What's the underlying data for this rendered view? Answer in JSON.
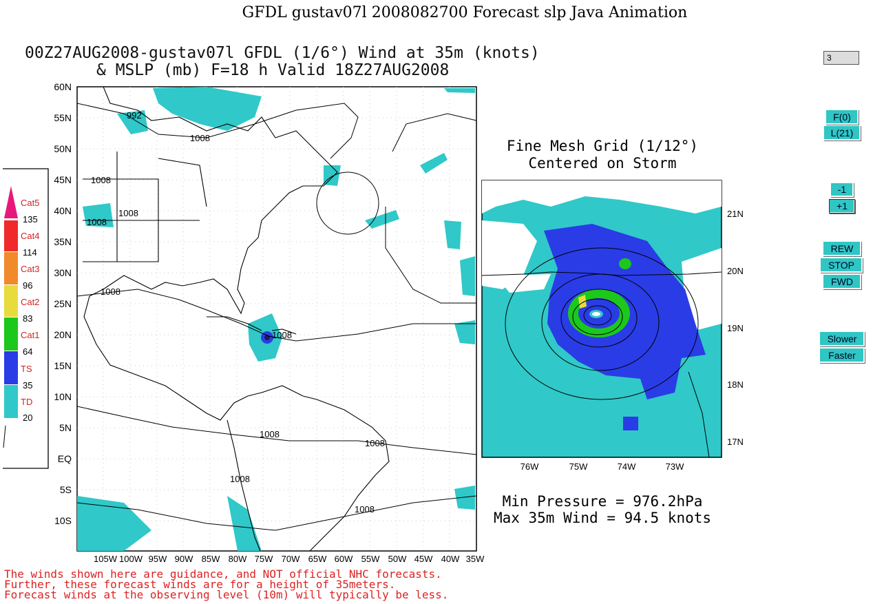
{
  "page": {
    "title": "GFDL gustav07l 2008082700 Forecast slp Java Animation"
  },
  "main_map": {
    "title_line1": "00Z27AUG2008-gustav07l GFDL (1/6°) Wind at 35m (knots)",
    "title_line2": "& MSLP (mb) F=18 h Valid 18Z27AUG2008",
    "lat_labels": [
      "60N",
      "55N",
      "50N",
      "45N",
      "40N",
      "35N",
      "30N",
      "25N",
      "20N",
      "15N",
      "10N",
      "5N",
      "EQ",
      "5S",
      "10S"
    ],
    "lon_labels": [
      "105W",
      "100W",
      "95W",
      "90W",
      "85W",
      "80W",
      "75W",
      "70W",
      "65W",
      "60W",
      "55W",
      "50W",
      "45W",
      "40W",
      "35W"
    ],
    "contour_labels": [
      "992",
      "1008",
      "1008",
      "1008",
      "1008",
      "1008",
      "1008",
      "1008",
      "1008",
      "1008",
      "1008"
    ]
  },
  "fine_mesh": {
    "title_line1": "Fine Mesh Grid (1/12°)",
    "title_line2": "Centered on Storm",
    "lat_labels": [
      "21N",
      "20N",
      "19N",
      "18N",
      "17N"
    ],
    "lon_labels": [
      "76W",
      "75W",
      "74W",
      "73W"
    ]
  },
  "stats": {
    "min_pressure": "Min Pressure = 976.2hPa",
    "max_wind": "Max 35m Wind = 94.5 knots"
  },
  "legend": {
    "categories": [
      {
        "label": "Cat5",
        "color": "#e8187a"
      },
      {
        "label": "Cat4",
        "color": "#f02a2a"
      },
      {
        "label": "Cat3",
        "color": "#f08a2a"
      },
      {
        "label": "Cat2",
        "color": "#e8dc3c"
      },
      {
        "label": "Cat1",
        "color": "#1cc81c"
      },
      {
        "label": "TS",
        "color": "#2a3ce6"
      },
      {
        "label": "TD",
        "color": "#30c8c8"
      }
    ],
    "thresholds": [
      "135",
      "114",
      "96",
      "83",
      "64",
      "35",
      "20"
    ],
    "label_color": "#d22222"
  },
  "disclaimer": {
    "line1": "The winds shown here are guidance, and NOT official NHC forecasts.",
    "line2": "Further, these forecast winds are for a height of 35meters.",
    "line3": "Forecast winds at the observing level (10m) will typically be less."
  },
  "controls": {
    "frame_value": "3",
    "first_label": "F(0)",
    "last_label": "L(21)",
    "minus_label": "-1",
    "plus_label": "+1",
    "rew_label": "REW",
    "stop_label": "STOP",
    "fwd_label": "FWD",
    "slower_label": "Slower",
    "faster_label": "Faster"
  },
  "colors": {
    "td": "#30c8c8",
    "ts": "#2a3ce6",
    "cat1": "#1cc81c",
    "cat2": "#e8dc3c"
  }
}
